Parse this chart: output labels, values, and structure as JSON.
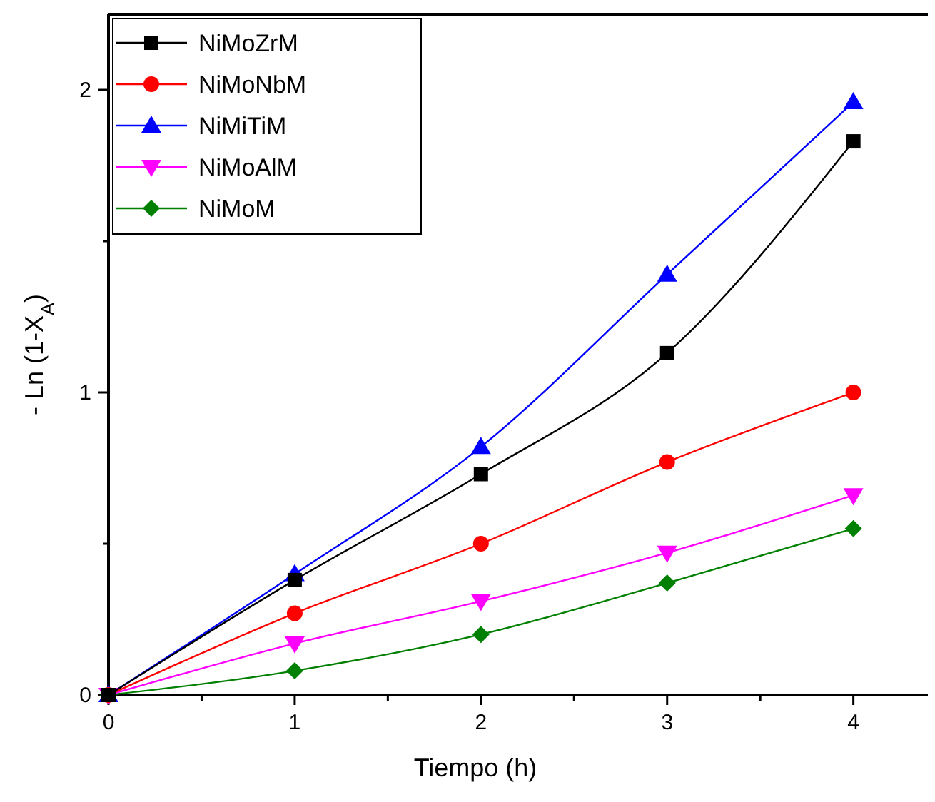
{
  "chart_data": {
    "type": "line",
    "xlabel": "Tiempo (h)",
    "ylabel": "- Ln (1-X$_{A}$)",
    "x": [
      0,
      1,
      2,
      3,
      4
    ],
    "series": [
      {
        "name": "NiMoZrM",
        "color": "#000000",
        "marker": "square",
        "values": [
          0,
          0.38,
          0.73,
          1.13,
          1.83
        ]
      },
      {
        "name": "NiMoNbM",
        "color": "#ff0000",
        "marker": "circle",
        "values": [
          0,
          0.27,
          0.5,
          0.77,
          1.0
        ]
      },
      {
        "name": "NiMiTiM",
        "color": "#0000ff",
        "marker": "triangle",
        "values": [
          0,
          0.4,
          0.82,
          1.39,
          1.96
        ]
      },
      {
        "name": "NiMoAlM",
        "color": "#ff00ff",
        "marker": "triangle-down",
        "values": [
          0,
          0.17,
          0.31,
          0.47,
          0.66
        ]
      },
      {
        "name": "NiMoM",
        "color": "#008000",
        "marker": "diamond",
        "values": [
          0,
          0.08,
          0.2,
          0.37,
          0.55
        ]
      }
    ],
    "xlim": [
      0,
      4.4
    ],
    "ylim": [
      0,
      2.25
    ],
    "xticks": [
      0,
      {
        "value": 0.5,
        "label": null
      },
      1,
      {
        "value": 1.5,
        "label": null
      },
      2,
      {
        "value": 2.5,
        "label": null
      },
      3,
      {
        "value": 3.5,
        "label": null
      },
      4
    ],
    "yticks": [
      0,
      {
        "value": 0.5,
        "label": null
      },
      1,
      {
        "value": 1.5,
        "label": null
      },
      2
    ],
    "legend": "top left",
    "grid": false
  }
}
